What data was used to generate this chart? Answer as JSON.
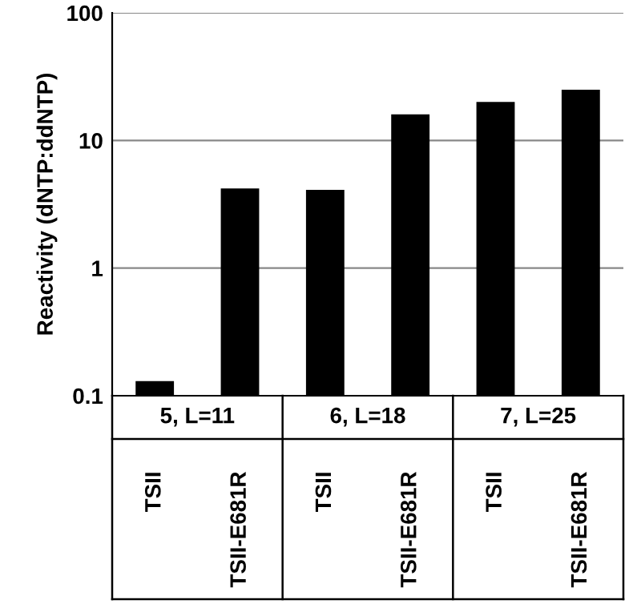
{
  "chart_data": {
    "type": "bar",
    "ylabel": "Reactivity (dNTP:ddNTP)",
    "categories": [
      "TSII",
      "TSII-E681R",
      "TSII",
      "TSII-E681R",
      "TSII",
      "TSII-E681R"
    ],
    "values": [
      0.13,
      4.2,
      4.1,
      16,
      20,
      25
    ],
    "color": "#000000",
    "log": true,
    "ylim": [
      0.1,
      100
    ],
    "yticks": [
      0.1,
      1,
      10,
      100
    ],
    "grid": "y",
    "annotations": [
      "5, L=11",
      "6, L=18",
      "7, L=25"
    ]
  }
}
